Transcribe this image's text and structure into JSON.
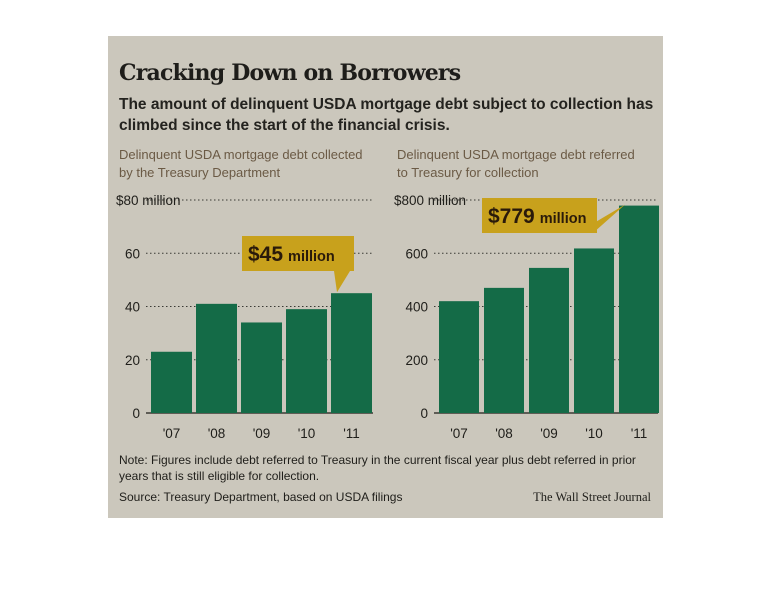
{
  "title": "Cracking Down on Borrowers",
  "subtitle": "The amount of delinquent USDA mortgage debt subject to collection has climbed since the start of the financial crisis.",
  "note": "Note: Figures include debt referred to Treasury in the current fiscal year plus debt referred in prior years that is still eligible for collection.",
  "source": "Source: Treasury Department, based on USDA filings",
  "credit": "The Wall Street Journal",
  "colors": {
    "bar": "#146b47",
    "callout": "#c8a11c",
    "background": "#cbc7bc"
  },
  "chart_data": [
    {
      "type": "bar",
      "title": "Delinquent USDA mortgage debt collected by the Treasury Department",
      "categories": [
        "'07",
        "'08",
        "'09",
        "'10",
        "'11"
      ],
      "values": [
        23,
        41,
        34,
        39,
        45
      ],
      "ylim": [
        0,
        80
      ],
      "yticks": [
        0,
        20,
        40,
        60,
        80
      ],
      "ytick_labels": [
        "0",
        "20",
        "40",
        "60",
        "$80 million"
      ],
      "grid": true,
      "callout": {
        "amount": "$45 million",
        "amount_main": "$45",
        "amount_unit": "million",
        "category": "'11"
      }
    },
    {
      "type": "bar",
      "title": "Delinquent USDA mortgage debt referred to Treasury for collection",
      "categories": [
        "'07",
        "'08",
        "'09",
        "'10",
        "'11"
      ],
      "values": [
        420,
        470,
        545,
        618,
        779
      ],
      "ylim": [
        0,
        800
      ],
      "yticks": [
        0,
        200,
        400,
        600,
        800
      ],
      "ytick_labels": [
        "0",
        "200",
        "400",
        "600",
        "$800 million"
      ],
      "grid": true,
      "callout": {
        "amount": "$779 million",
        "amount_main": "$779",
        "amount_unit": "million",
        "category": "'11"
      }
    }
  ]
}
